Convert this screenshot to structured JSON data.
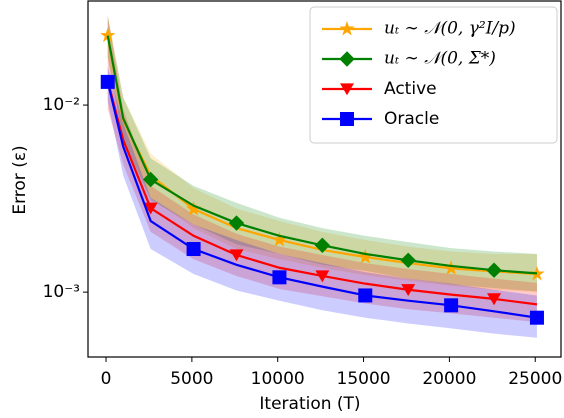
{
  "chart_data": {
    "type": "line",
    "xlabel": "Iteration (T)",
    "ylabel": "Error (ε)",
    "log_y": true,
    "legend": "upper right",
    "x": [
      100,
      1000,
      2600,
      5100,
      7600,
      10100,
      12600,
      15100,
      17600,
      20100,
      22600,
      25100
    ],
    "series": [
      {
        "name": "uₜ ∼ 𝒩(0, γ²I/p)",
        "color": "#ffa500",
        "marker": "star",
        "markers_at": [
          0,
          3,
          5,
          7,
          9,
          11
        ],
        "values": [
          0.0235,
          0.0083,
          0.0042,
          0.00278,
          0.0022,
          0.0019,
          0.00168,
          0.00154,
          0.00143,
          0.00134,
          0.00129,
          0.00125
        ],
        "upper": [
          0.03,
          0.011,
          0.0055,
          0.0036,
          0.0028,
          0.0024,
          0.0021,
          0.0019,
          0.00175,
          0.00165,
          0.0016,
          0.0016
        ],
        "lower": [
          0.018,
          0.0065,
          0.0032,
          0.0022,
          0.0017,
          0.0015,
          0.00135,
          0.00123,
          0.00115,
          0.00108,
          0.00103,
          0.001
        ]
      },
      {
        "name": "uₜ ∼ 𝒩(0, Σ*)",
        "color": "#008000",
        "marker": "diamond",
        "markers_at": [
          2,
          4,
          6,
          8,
          10
        ],
        "values": [
          0.0235,
          0.0085,
          0.004,
          0.0029,
          0.00234,
          0.002,
          0.00178,
          0.0016,
          0.00148,
          0.00138,
          0.00131,
          0.00126
        ],
        "upper": [
          0.03,
          0.011,
          0.0052,
          0.0037,
          0.003,
          0.0025,
          0.0022,
          0.002,
          0.00185,
          0.00172,
          0.00165,
          0.0016
        ],
        "lower": [
          0.018,
          0.0065,
          0.0031,
          0.0023,
          0.0018,
          0.0016,
          0.0014,
          0.0013,
          0.00118,
          0.0011,
          0.00105,
          0.00101
        ]
      },
      {
        "name": "Active",
        "color": "#ff0000",
        "marker": "triangle-down",
        "markers_at": [
          2,
          4,
          6,
          8,
          10
        ],
        "values": [
          0.0135,
          0.0065,
          0.00281,
          0.002,
          0.00158,
          0.00135,
          0.00122,
          0.00111,
          0.00103,
          0.00097,
          0.00092,
          0.00086
        ],
        "upper": [
          0.03,
          0.0095,
          0.0037,
          0.0026,
          0.00205,
          0.00175,
          0.00158,
          0.00143,
          0.00133,
          0.00125,
          0.00118,
          0.00112
        ],
        "lower": [
          0.0095,
          0.0048,
          0.0021,
          0.0015,
          0.00122,
          0.00104,
          0.00095,
          0.00087,
          0.00081,
          0.00077,
          0.00073,
          0.00069
        ]
      },
      {
        "name": "Oracle",
        "color": "#0000ff",
        "marker": "square",
        "markers_at": [
          0,
          3,
          5,
          7,
          9,
          11
        ],
        "values": [
          0.0133,
          0.006,
          0.0024,
          0.0017,
          0.0014,
          0.0012,
          0.00107,
          0.00096,
          0.0009,
          0.00085,
          0.00079,
          0.00073
        ],
        "upper": [
          0.016,
          0.008,
          0.0032,
          0.0023,
          0.0019,
          0.0016,
          0.00143,
          0.00128,
          0.00118,
          0.00111,
          0.00103,
          0.00096
        ],
        "lower": [
          0.0105,
          0.0042,
          0.0017,
          0.00125,
          0.00102,
          0.0009,
          0.0008,
          0.00073,
          0.00068,
          0.00064,
          0.0006,
          0.00057
        ]
      }
    ],
    "xlim": [
      -1050,
      26500
    ],
    "xticks": [
      0,
      5000,
      10000,
      15000,
      20000,
      25000
    ],
    "ylim": [
      0.00045,
      0.036
    ],
    "yticks": [
      {
        "value": 0.01,
        "label": "10⁻²"
      },
      {
        "value": 0.001,
        "label": "10⁻³"
      }
    ]
  }
}
